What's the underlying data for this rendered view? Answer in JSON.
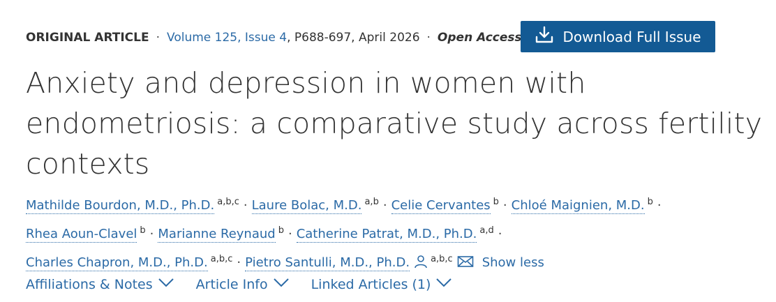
{
  "meta": {
    "article_type": "ORIGINAL ARTICLE",
    "volume_issue": "Volume 125, Issue 4",
    "pages_date": ", P688-697, April 2026",
    "access": "Open Access"
  },
  "download_button": {
    "label": "Download Full Issue",
    "icon": "download-icon"
  },
  "title": {
    "line1": "Anxiety and depression in women with",
    "line2": "endometriosis: a comparative study across fertility",
    "line3": "contexts"
  },
  "authors": [
    {
      "name": "Mathilde Bourdon, M.D., Ph.D.",
      "affil": "a,b,c"
    },
    {
      "name": "Laure Bolac, M.D.",
      "affil": "a,b"
    },
    {
      "name": "Celie Cervantes",
      "affil": "b"
    },
    {
      "name": "Chloé Maignien, M.D.",
      "affil": "b"
    },
    {
      "name": "Rhea Aoun-Clavel",
      "affil": "b"
    },
    {
      "name": "Marianne Reynaud",
      "affil": "b"
    },
    {
      "name": "Catherine Patrat, M.D., Ph.D.",
      "affil": "a,d"
    },
    {
      "name": "Charles Chapron, M.D., Ph.D.",
      "affil": "a,b,c"
    },
    {
      "name": "Pietro Santulli, M.D., Ph.D.",
      "affil": "a,b,c"
    }
  ],
  "show_less": "Show less",
  "tabs": [
    {
      "label": "Affiliations & Notes"
    },
    {
      "label": "Article Info"
    },
    {
      "label": "Linked Articles (1)"
    }
  ],
  "colors": {
    "link": "#2b6aa6",
    "button": "#135a94",
    "text": "#333333"
  }
}
